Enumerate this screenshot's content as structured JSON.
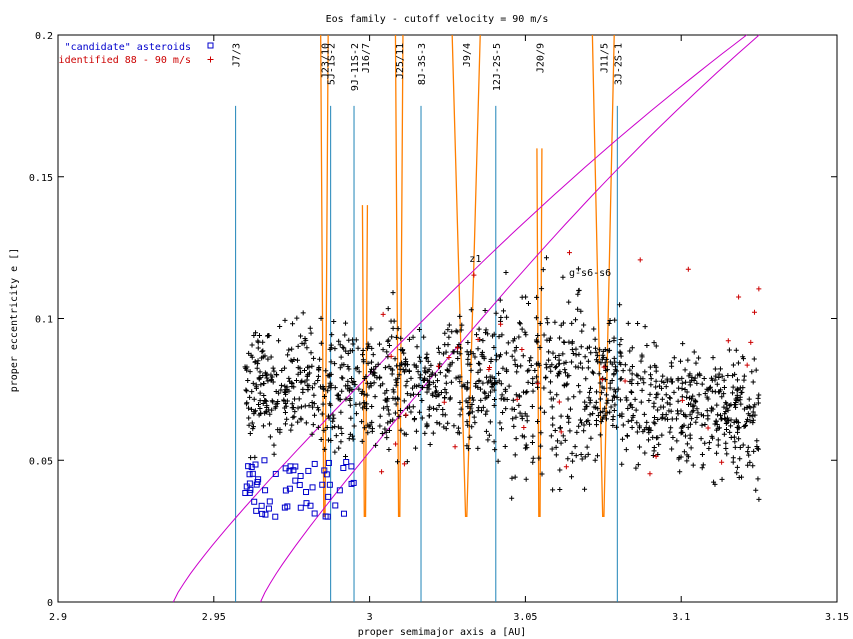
{
  "chart_data": {
    "type": "scatter",
    "title": "Eos family - cutoff velocity = 90 m/s",
    "xlabel": "proper semimajor axis a [AU]",
    "ylabel": "proper eccentricity e []",
    "xlim": [
      2.9,
      3.15
    ],
    "ylim": [
      0,
      0.2
    ],
    "x_ticks": [
      "2.9",
      "2.95",
      "3",
      "3.05",
      "3.1",
      "3.15"
    ],
    "y_ticks": [
      "0",
      "0.05",
      "0.1",
      "0.15",
      "0.2"
    ],
    "grid": false,
    "legend_position": "top-left",
    "series": [
      {
        "name": "\"candidate\" asteroids",
        "marker": "square",
        "color": "#0000cc"
      },
      {
        "name": "identified 88 - 90 m/s",
        "marker": "plus",
        "color": "#cc0000"
      },
      {
        "marker": "plus",
        "color": "#000000"
      }
    ],
    "resonances": [
      {
        "label": "J7/3",
        "a": 2.957,
        "kind": "mmr"
      },
      {
        "label": "J23/10",
        "a": 2.9855,
        "kind": "mmr"
      },
      {
        "label": "5J-1S-2",
        "a": 2.9875,
        "kind": "mmr"
      },
      {
        "label": "9J-11S-2",
        "a": 2.995,
        "kind": "mmr"
      },
      {
        "label": "J16/7",
        "a": 2.9985,
        "kind": "mmr"
      },
      {
        "label": "J25/11",
        "a": 3.0095,
        "kind": "mmr"
      },
      {
        "label": "8J-3S-3",
        "a": 3.0165,
        "kind": "mmr"
      },
      {
        "label": "J9/4",
        "a": 3.031,
        "kind": "mmr"
      },
      {
        "label": "12J-2S-5",
        "a": 3.0405,
        "kind": "mmr"
      },
      {
        "label": "J20/9",
        "a": 3.0545,
        "kind": "mmr"
      },
      {
        "label": "J11/5",
        "a": 3.075,
        "kind": "mmr"
      },
      {
        "label": "3J-2S-1",
        "a": 3.0795,
        "kind": "mmr"
      }
    ],
    "annotations": [
      {
        "text": "z1",
        "x": 3.032,
        "y": 0.12
      },
      {
        "text": "g-s6-s6",
        "x": 3.064,
        "y": 0.115
      }
    ],
    "colors": {
      "three_body": "#1f84b8",
      "two_body": "#ff7f00",
      "secular": "#cc00cc",
      "axes": "#000000"
    }
  }
}
